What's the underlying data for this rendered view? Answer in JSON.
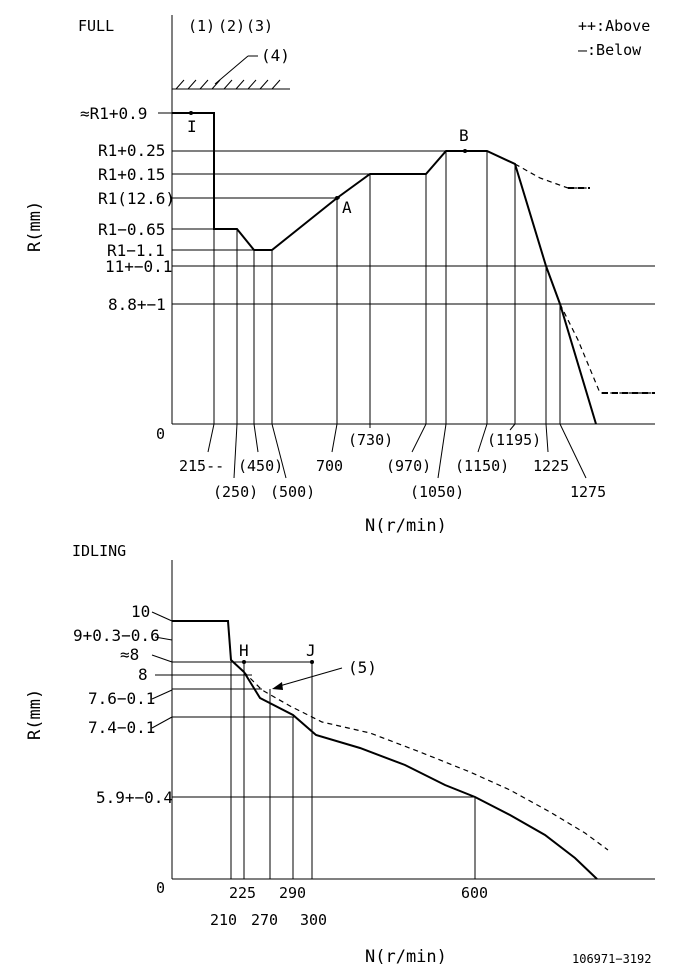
{
  "full": {
    "title": "FULL",
    "top_markers": [
      "(1)",
      "(2)",
      "(3)"
    ],
    "hatch_label": "(4)",
    "legend": {
      "above": "++:Above",
      "below": "—:Below"
    },
    "y_axis_title": "R(mm)",
    "x_axis_title": "N(r/min)",
    "zero": "0",
    "y_labels": [
      "≈R1+0.9",
      "R1+0.25",
      "R1+0.15",
      "R1(12.6)",
      "R1−0.65",
      "R1−1.1",
      "11+−0.1",
      "8.8+−1"
    ],
    "x_labels": [
      "215--",
      "(250)",
      "(450)",
      "(500)",
      "700",
      "(730)",
      "(970)",
      "(1050)",
      "(1150)",
      "(1195)",
      "1225",
      "1275"
    ],
    "points": {
      "I": "I",
      "A": "A",
      "B": "B"
    }
  },
  "idling": {
    "title": "IDLING",
    "y_axis_title": "R(mm)",
    "x_axis_title": "N(r/min)",
    "zero": "0",
    "y_labels": [
      "10",
      "9+0.3−0.6",
      "≈8",
      "8",
      "7.6−0.1",
      "7.4−0.1",
      "5.9+−0.4"
    ],
    "x_labels": [
      "210",
      "225",
      "270",
      "290",
      "300",
      "600"
    ],
    "points": {
      "H": "H",
      "J": "J"
    },
    "callout": "(5)"
  },
  "doc_number": "106971−3192"
}
